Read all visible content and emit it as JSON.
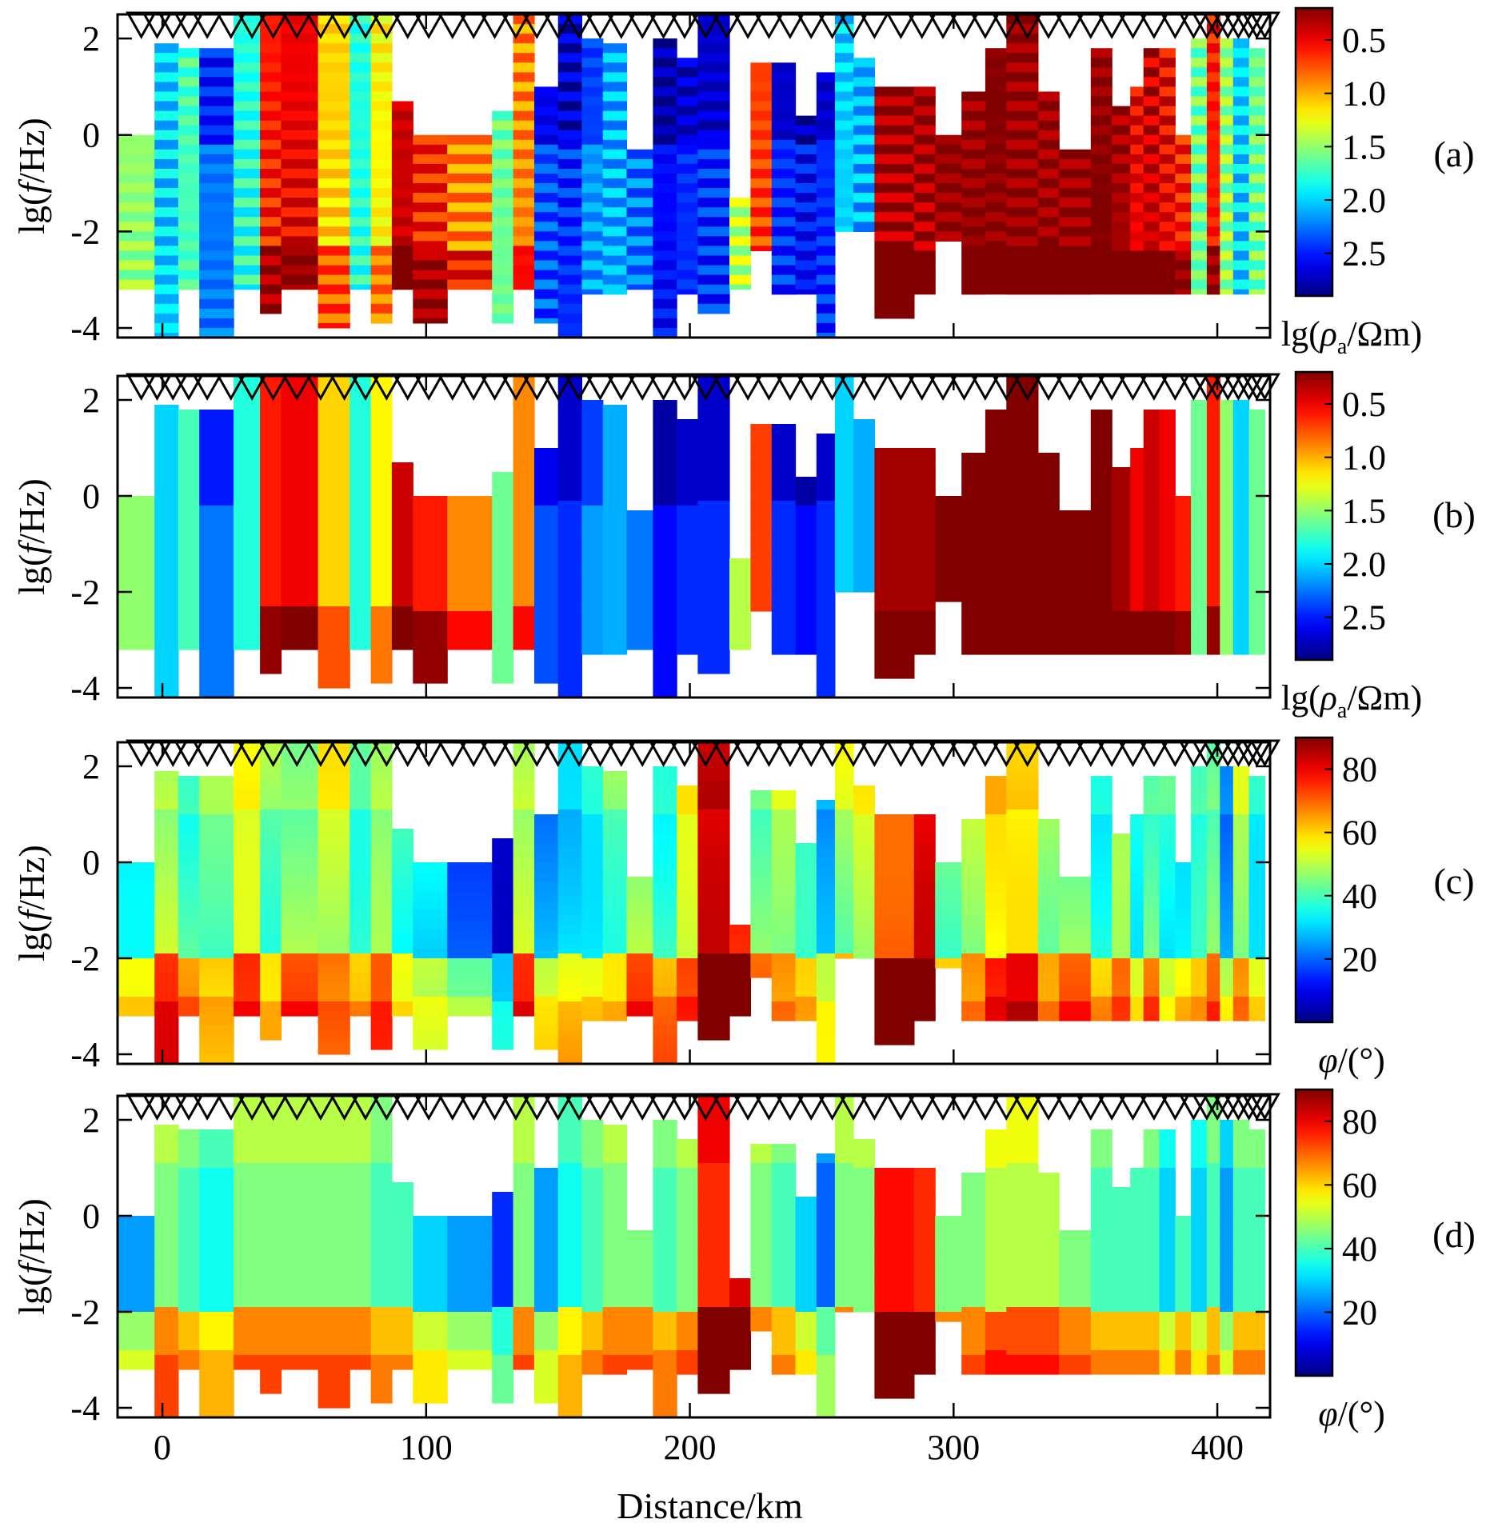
{
  "figure": {
    "xlabel": "Distance/km",
    "xlim": [
      -17,
      420
    ],
    "ylim": [
      -4.2,
      2.5
    ],
    "x_ticks": [
      0,
      100,
      200,
      300,
      400
    ],
    "x_tick_labels": [
      "0",
      "100",
      "200",
      "300",
      "400"
    ],
    "y_ticks": [
      2,
      0,
      -2,
      -4
    ],
    "y_tick_labels": [
      "2",
      "0",
      "-2",
      "-4"
    ]
  },
  "chart_data": [
    {
      "type": "heatmap",
      "panel": "(a)",
      "title": "",
      "ylabel_pre": "lg(",
      "ylabel_var": "f",
      "ylabel_post": "/Hz)",
      "colorbar": {
        "ticks": [
          0.5,
          1.0,
          1.5,
          2.0,
          2.5
        ],
        "tick_labels": [
          "0.5",
          "1.0",
          "1.5",
          "2.0",
          "2.5"
        ],
        "range": [
          0.2,
          2.9
        ],
        "reverse": true,
        "label_pre": "lg(",
        "label_var": "ρ",
        "label_sub": "a",
        "label_post": "/Ωm)"
      },
      "field": "resistivity_observed"
    },
    {
      "type": "heatmap",
      "panel": "(b)",
      "title": "",
      "ylabel_pre": "lg(",
      "ylabel_var": "f",
      "ylabel_post": "/Hz)",
      "colorbar": {
        "ticks": [
          0.5,
          1.0,
          1.5,
          2.0,
          2.5
        ],
        "tick_labels": [
          "0.5",
          "1.0",
          "1.5",
          "2.0",
          "2.5"
        ],
        "range": [
          0.2,
          2.9
        ],
        "reverse": true,
        "label_pre": "lg(",
        "label_var": "ρ",
        "label_sub": "a",
        "label_post": "/Ωm)"
      },
      "field": "resistivity_model"
    },
    {
      "type": "heatmap",
      "panel": "(c)",
      "title": "",
      "ylabel_pre": "lg(",
      "ylabel_var": "f",
      "ylabel_post": "/Hz)",
      "colorbar": {
        "ticks": [
          80,
          60,
          40,
          20
        ],
        "tick_labels": [
          "80",
          "60",
          "40",
          "20"
        ],
        "range": [
          0,
          90
        ],
        "reverse": false,
        "label_var": "φ",
        "label_post": "/(°)"
      },
      "field": "phase_observed"
    },
    {
      "type": "heatmap",
      "panel": "(d)",
      "title": "",
      "ylabel_pre": "lg(",
      "ylabel_var": "f",
      "ylabel_post": "/Hz)",
      "colorbar": {
        "ticks": [
          80,
          60,
          40,
          20
        ],
        "tick_labels": [
          "80",
          "60",
          "40",
          "20"
        ],
        "range": [
          0,
          90
        ],
        "reverse": false,
        "label_var": "φ",
        "label_post": "/(°)"
      },
      "field": "phase_model"
    }
  ],
  "stations_km": [
    -8,
    -2,
    4,
    10,
    17,
    26,
    34,
    42,
    51,
    60,
    69,
    77,
    85,
    93,
    101,
    110,
    118,
    126,
    134,
    142,
    150,
    158,
    166,
    174,
    182,
    190,
    198,
    206,
    214,
    222,
    230,
    238,
    246,
    254,
    262,
    270,
    280,
    288,
    296,
    304,
    312,
    320,
    328,
    336,
    344,
    352,
    360,
    368,
    376,
    384,
    391,
    396,
    400,
    404,
    408,
    412,
    415,
    418
  ],
  "columns": [
    {
      "x0": -17,
      "x1": -3,
      "top": 0.0,
      "bot": -3.2,
      "res": 1.5,
      "ph": 25
    },
    {
      "x0": -3,
      "x1": 6,
      "top": 1.9,
      "bot": -4.2,
      "res": 2.0,
      "ph": 45
    },
    {
      "x0": 6,
      "x1": 14,
      "top": 1.8,
      "bot": -3.2,
      "res": 1.7,
      "ph": 40
    },
    {
      "x0": 14,
      "x1": 27,
      "top": 1.8,
      "bot": -4.2,
      "res": 2.4,
      "ph": 35
    },
    {
      "x0": 27,
      "x1": 37,
      "top": 2.5,
      "bot": -3.2,
      "res": 1.8,
      "ph": 45
    },
    {
      "x0": 37,
      "x1": 45,
      "top": 2.5,
      "bot": -3.7,
      "res": 0.6,
      "ph": 45
    },
    {
      "x0": 45,
      "x1": 59,
      "top": 2.5,
      "bot": -3.2,
      "res": 0.5,
      "ph": 45
    },
    {
      "x0": 59,
      "x1": 71,
      "top": 2.5,
      "bot": -4.0,
      "res": 1.1,
      "ph": 45
    },
    {
      "x0": 71,
      "x1": 79,
      "top": 2.5,
      "bot": -3.2,
      "res": 1.8,
      "ph": 45
    },
    {
      "x0": 79,
      "x1": 87,
      "top": 2.5,
      "bot": -3.9,
      "res": 1.2,
      "ph": 40
    },
    {
      "x0": 87,
      "x1": 95,
      "top": 0.7,
      "bot": -3.2,
      "res": 0.4,
      "ph": 40
    },
    {
      "x0": 95,
      "x1": 108,
      "top": 0.0,
      "bot": -3.9,
      "res": 0.6,
      "ph": 30
    },
    {
      "x0": 108,
      "x1": 125,
      "top": 0.0,
      "bot": -3.2,
      "res": 0.9,
      "ph": 25
    },
    {
      "x0": 125,
      "x1": 133,
      "top": 0.5,
      "bot": -3.9,
      "res": 1.6,
      "ph": 15
    },
    {
      "x0": 133,
      "x1": 141,
      "top": 2.5,
      "bot": -3.2,
      "res": 0.9,
      "ph": 45
    },
    {
      "x0": 141,
      "x1": 150,
      "top": 1.0,
      "bot": -3.9,
      "res": 2.5,
      "ph": 25
    },
    {
      "x0": 150,
      "x1": 159,
      "top": 2.5,
      "bot": -4.2,
      "res": 2.6,
      "ph": 35
    },
    {
      "x0": 159,
      "x1": 167,
      "top": 2.0,
      "bot": -3.3,
      "res": 2.3,
      "ph": 40
    },
    {
      "x0": 167,
      "x1": 176,
      "top": 1.9,
      "bot": -3.3,
      "res": 2.1,
      "ph": 45
    },
    {
      "x0": 176,
      "x1": 186,
      "top": -0.3,
      "bot": -3.2,
      "res": 2.4,
      "ph": 45
    },
    {
      "x0": 186,
      "x1": 195,
      "top": 2.0,
      "bot": -4.2,
      "res": 2.7,
      "ph": 40
    },
    {
      "x0": 195,
      "x1": 203,
      "top": 1.6,
      "bot": -3.3,
      "res": 2.6,
      "ph": 45
    },
    {
      "x0": 203,
      "x1": 215,
      "top": 2.5,
      "bot": -3.7,
      "res": 2.6,
      "ph": 75
    },
    {
      "x0": 215,
      "x1": 223,
      "top": -1.3,
      "bot": -3.2,
      "res": 1.4,
      "ph": 82
    },
    {
      "x0": 223,
      "x1": 231,
      "top": 1.5,
      "bot": -2.4,
      "res": 0.7,
      "ph": 45
    },
    {
      "x0": 231,
      "x1": 240,
      "top": 1.5,
      "bot": -3.3,
      "res": 2.6,
      "ph": 40
    },
    {
      "x0": 240,
      "x1": 248,
      "top": 0.4,
      "bot": -3.3,
      "res": 2.7,
      "ph": 30
    },
    {
      "x0": 248,
      "x1": 255,
      "top": 1.3,
      "bot": -4.2,
      "res": 2.6,
      "ph": 20
    },
    {
      "x0": 255,
      "x1": 262,
      "top": 2.5,
      "bot": -2.0,
      "res": 2.0,
      "ph": 45
    },
    {
      "x0": 262,
      "x1": 270,
      "top": 1.6,
      "bot": -2.0,
      "res": 2.1,
      "ph": 45
    },
    {
      "x0": 270,
      "x1": 285,
      "top": 1.0,
      "bot": -3.8,
      "res": 0.3,
      "ph": 78
    },
    {
      "x0": 285,
      "x1": 293,
      "top": 1.0,
      "bot": -3.3,
      "res": 0.3,
      "ph": 75
    },
    {
      "x0": 293,
      "x1": 303,
      "top": 0.0,
      "bot": -2.2,
      "res": 0.2,
      "ph": 45
    },
    {
      "x0": 303,
      "x1": 312,
      "top": 0.9,
      "bot": -3.3,
      "res": 0.2,
      "ph": 45
    },
    {
      "x0": 312,
      "x1": 320,
      "top": 1.8,
      "bot": -3.3,
      "res": 0.2,
      "ph": 50
    },
    {
      "x0": 320,
      "x1": 332,
      "top": 2.5,
      "bot": -3.3,
      "res": 0.2,
      "ph": 50
    },
    {
      "x0": 332,
      "x1": 340,
      "top": 0.9,
      "bot": -3.3,
      "res": 0.2,
      "ph": 50
    },
    {
      "x0": 340,
      "x1": 352,
      "top": -0.3,
      "bot": -3.3,
      "res": 0.2,
      "ph": 45
    },
    {
      "x0": 352,
      "x1": 360,
      "top": 1.8,
      "bot": -3.3,
      "res": 0.2,
      "ph": 40
    },
    {
      "x0": 360,
      "x1": 367,
      "top": 0.6,
      "bot": -3.3,
      "res": 0.3,
      "ph": 40
    },
    {
      "x0": 367,
      "x1": 372,
      "top": 1.0,
      "bot": -3.3,
      "res": 0.5,
      "ph": 40
    },
    {
      "x0": 372,
      "x1": 378,
      "top": 1.8,
      "bot": -3.3,
      "res": 0.4,
      "ph": 40
    },
    {
      "x0": 378,
      "x1": 384,
      "top": 1.8,
      "bot": -3.3,
      "res": 0.5,
      "ph": 30
    },
    {
      "x0": 384,
      "x1": 390,
      "top": 0.0,
      "bot": -3.3,
      "res": 0.6,
      "ph": 40
    },
    {
      "x0": 390,
      "x1": 396,
      "top": 2.0,
      "bot": -3.3,
      "res": 1.6,
      "ph": 30
    },
    {
      "x0": 396,
      "x1": 401,
      "top": 2.5,
      "bot": -3.3,
      "res": 0.6,
      "ph": 40
    },
    {
      "x0": 401,
      "x1": 406,
      "top": 2.0,
      "bot": -3.3,
      "res": 1.5,
      "ph": 25
    },
    {
      "x0": 406,
      "x1": 412,
      "top": 2.0,
      "bot": -3.3,
      "res": 2.0,
      "ph": 40
    },
    {
      "x0": 412,
      "x1": 418,
      "top": 1.8,
      "bot": -3.3,
      "res": 1.6,
      "ph": 40
    }
  ]
}
